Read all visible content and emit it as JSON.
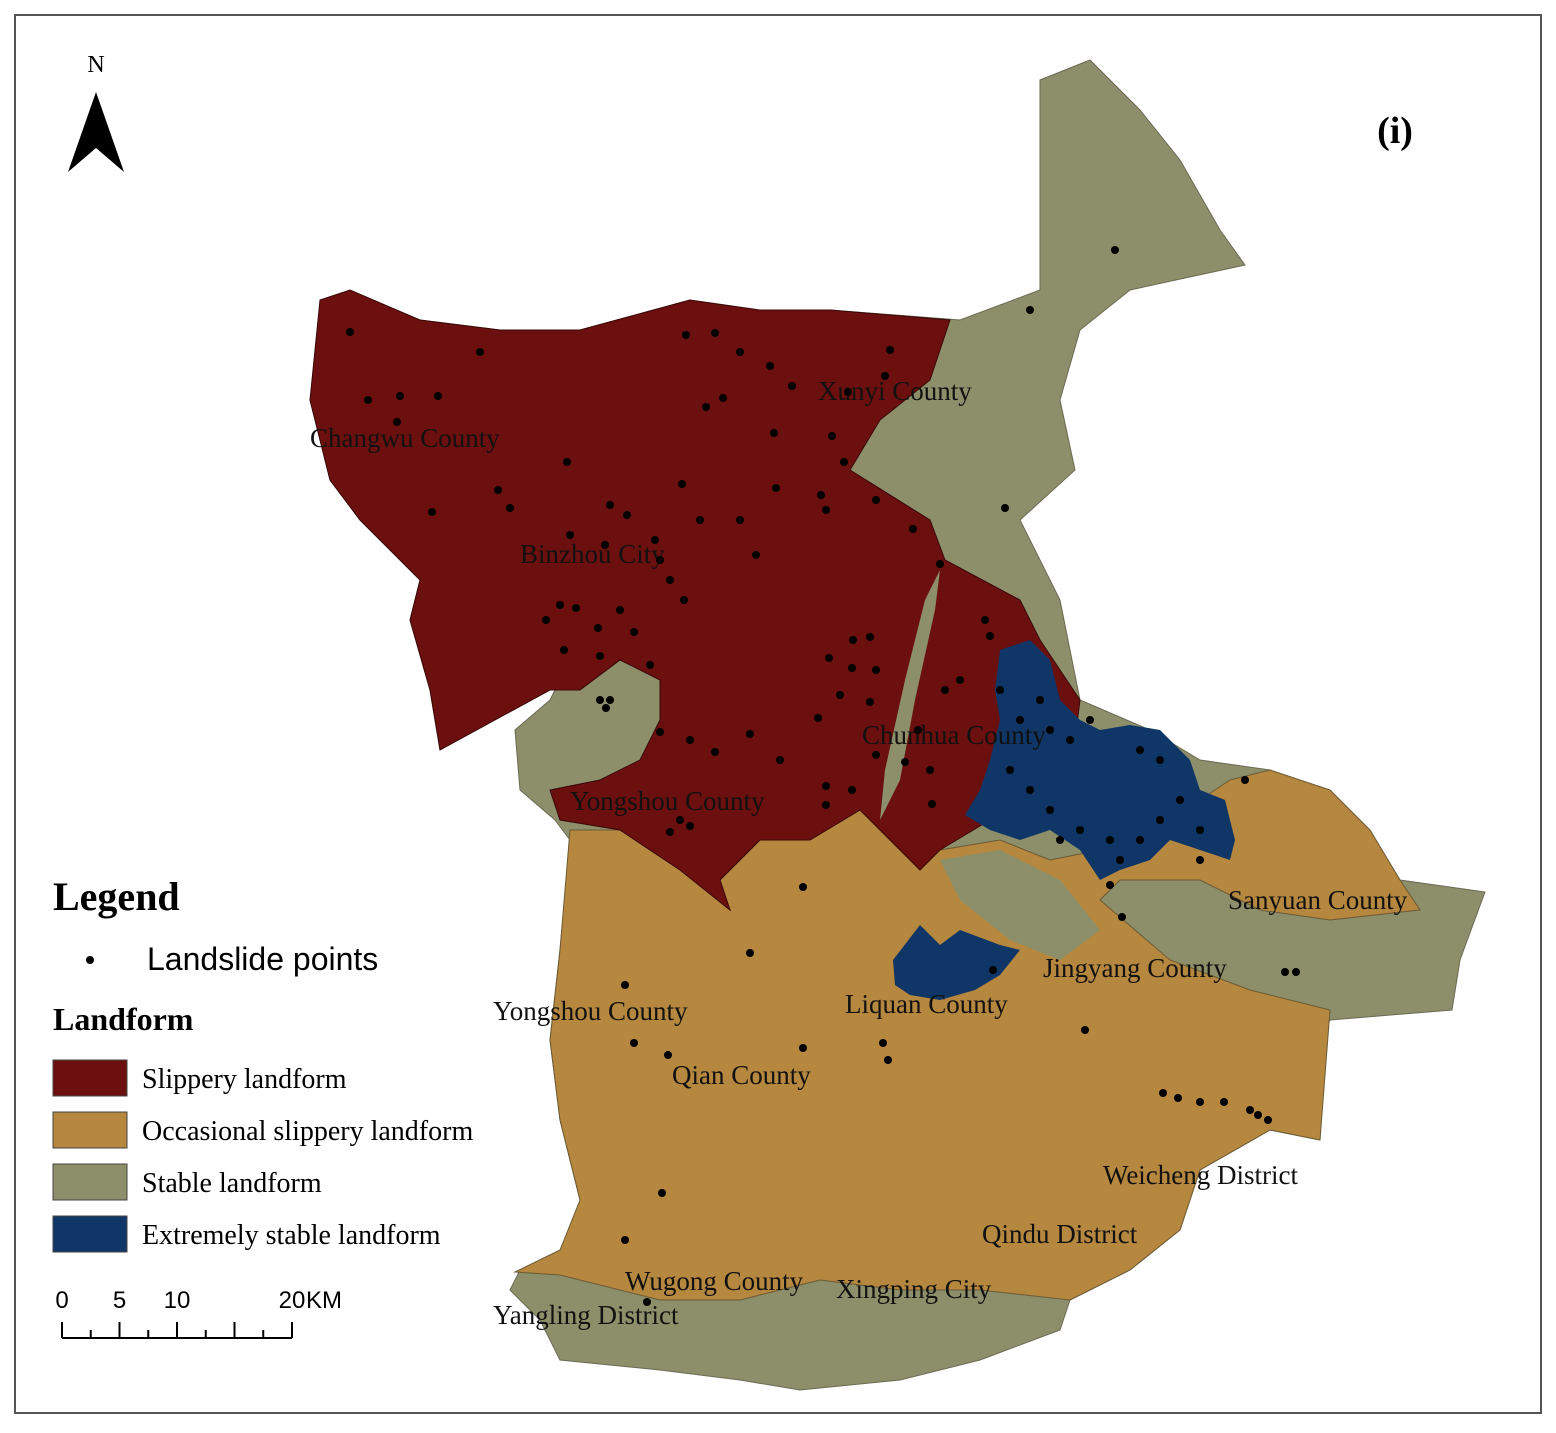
{
  "north_arrow": "N",
  "panel_label": "(i)",
  "legend": {
    "title": "Legend",
    "point_label": "Landslide points",
    "landform_title": "Landform",
    "items": [
      {
        "label": "Slippery landform",
        "color": "#6b0f0f"
      },
      {
        "label": "Occasional slippery landform",
        "color": "#b5873f"
      },
      {
        "label": "Stable landform",
        "color": "#8c8f69"
      },
      {
        "label": "Extremely stable landform",
        "color": "#0f3666"
      }
    ]
  },
  "scale_bar": {
    "labels": [
      "0",
      "5",
      "10",
      "20"
    ],
    "unit": "KM"
  },
  "places": [
    "Changwu County",
    "Xunyi County",
    "Binzhou City",
    "Chunhua County",
    "Yongshou County",
    "Sanyuan County",
    "Jingyang County",
    "Yongshou County",
    "Liquan County",
    "Qian County",
    "Weicheng District",
    "Qindu District",
    "Wugong County",
    "Xingping City",
    "Yangling District"
  ]
}
